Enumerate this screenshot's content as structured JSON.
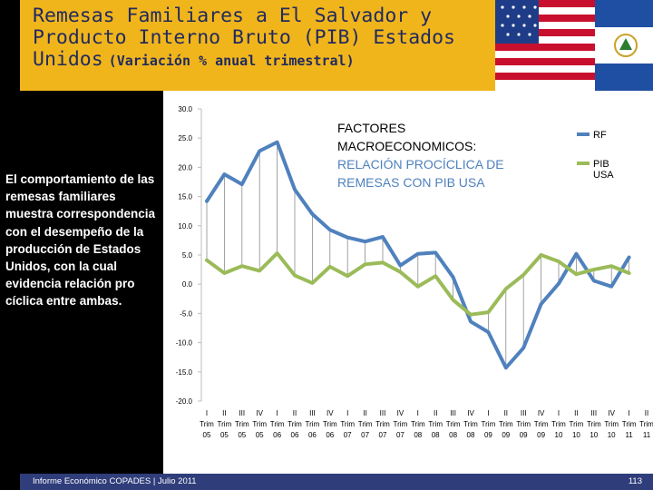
{
  "slide": {
    "title_main": "Remesas Familiares a El Salvador y Producto Interno Bruto (PIB) Estados Unidos",
    "title_sub": "(Variación % anual trimestral)",
    "side_text": "El comportamiento de las remesas familiares muestra correspondencia con el desempeño de la producción de Estados Unidos, con la cual evidencia relación pro cíclica entre ambas.",
    "footer": "Informe Económico COPADES | Julio 2011",
    "page_number": "113"
  },
  "colors": {
    "rf": "#4f81bd",
    "pib": "#9bbb59",
    "title_band": "#f1b51c",
    "title_text": "#1f2a5e",
    "annotation": "#000000"
  },
  "chart_data": {
    "type": "line",
    "annotation_line1": "FACTORES",
    "annotation_line2": "MACROECONOMICOS:",
    "annotation_line3": "RELACIÓN PROCÍCLICA DE",
    "annotation_line4": "REMESAS CON PIB USA",
    "ylim": [
      -20,
      30
    ],
    "yticks": [
      "30.0",
      "25.0",
      "20.0",
      "15.0",
      "10.0",
      "5.0",
      "0.0",
      "-5.0",
      "-10.0",
      "-15.0",
      "-20.0"
    ],
    "categories": [
      {
        "q": "I",
        "t": "Trim",
        "y": "05"
      },
      {
        "q": "II",
        "t": "Trim",
        "y": "05"
      },
      {
        "q": "III",
        "t": "Trim",
        "y": "05"
      },
      {
        "q": "IV",
        "t": "Trim",
        "y": "05"
      },
      {
        "q": "I",
        "t": "Trim",
        "y": "06"
      },
      {
        "q": "II",
        "t": "Trim",
        "y": "06"
      },
      {
        "q": "III",
        "t": "Trim",
        "y": "06"
      },
      {
        "q": "IV",
        "t": "Trim",
        "y": "06"
      },
      {
        "q": "I",
        "t": "Trim",
        "y": "07"
      },
      {
        "q": "II",
        "t": "Trim",
        "y": "07"
      },
      {
        "q": "III",
        "t": "Trim",
        "y": "07"
      },
      {
        "q": "IV",
        "t": "Trim",
        "y": "07"
      },
      {
        "q": "I",
        "t": "Trim",
        "y": "08"
      },
      {
        "q": "II",
        "t": "Trim",
        "y": "08"
      },
      {
        "q": "III",
        "t": "Trim",
        "y": "08"
      },
      {
        "q": "IV",
        "t": "Trim",
        "y": "08"
      },
      {
        "q": "I",
        "t": "Trim",
        "y": "09"
      },
      {
        "q": "II",
        "t": "Trim",
        "y": "09"
      },
      {
        "q": "III",
        "t": "Trim",
        "y": "09"
      },
      {
        "q": "IV",
        "t": "Trim",
        "y": "09"
      },
      {
        "q": "I",
        "t": "Trim",
        "y": "10"
      },
      {
        "q": "II",
        "t": "Trim",
        "y": "10"
      },
      {
        "q": "III",
        "t": "Trim",
        "y": "10"
      },
      {
        "q": "IV",
        "t": "Trim",
        "y": "10"
      },
      {
        "q": "I",
        "t": "Trim",
        "y": "11"
      },
      {
        "q": "II",
        "t": "Trim",
        "y": "11"
      }
    ],
    "series": [
      {
        "name": "RF",
        "values": [
          14.2,
          18.8,
          17.1,
          22.8,
          24.3,
          16.2,
          12.0,
          9.3,
          8.0,
          7.3,
          8.1,
          3.2,
          5.2,
          5.4,
          1.2,
          -6.4,
          -8.2,
          -14.3,
          -10.9,
          -3.4,
          0.1,
          5.2,
          0.6,
          -0.4,
          4.6,
          null
        ]
      },
      {
        "name": "PIB USA",
        "values": [
          4.1,
          1.9,
          3.1,
          2.3,
          5.3,
          1.5,
          0.2,
          3.0,
          1.4,
          3.4,
          3.7,
          2.1,
          -0.4,
          1.4,
          -2.7,
          -5.2,
          -4.8,
          -0.8,
          1.6,
          5.0,
          3.9,
          1.7,
          2.5,
          3.1,
          1.9,
          null
        ]
      }
    ],
    "legend": "top-right"
  }
}
